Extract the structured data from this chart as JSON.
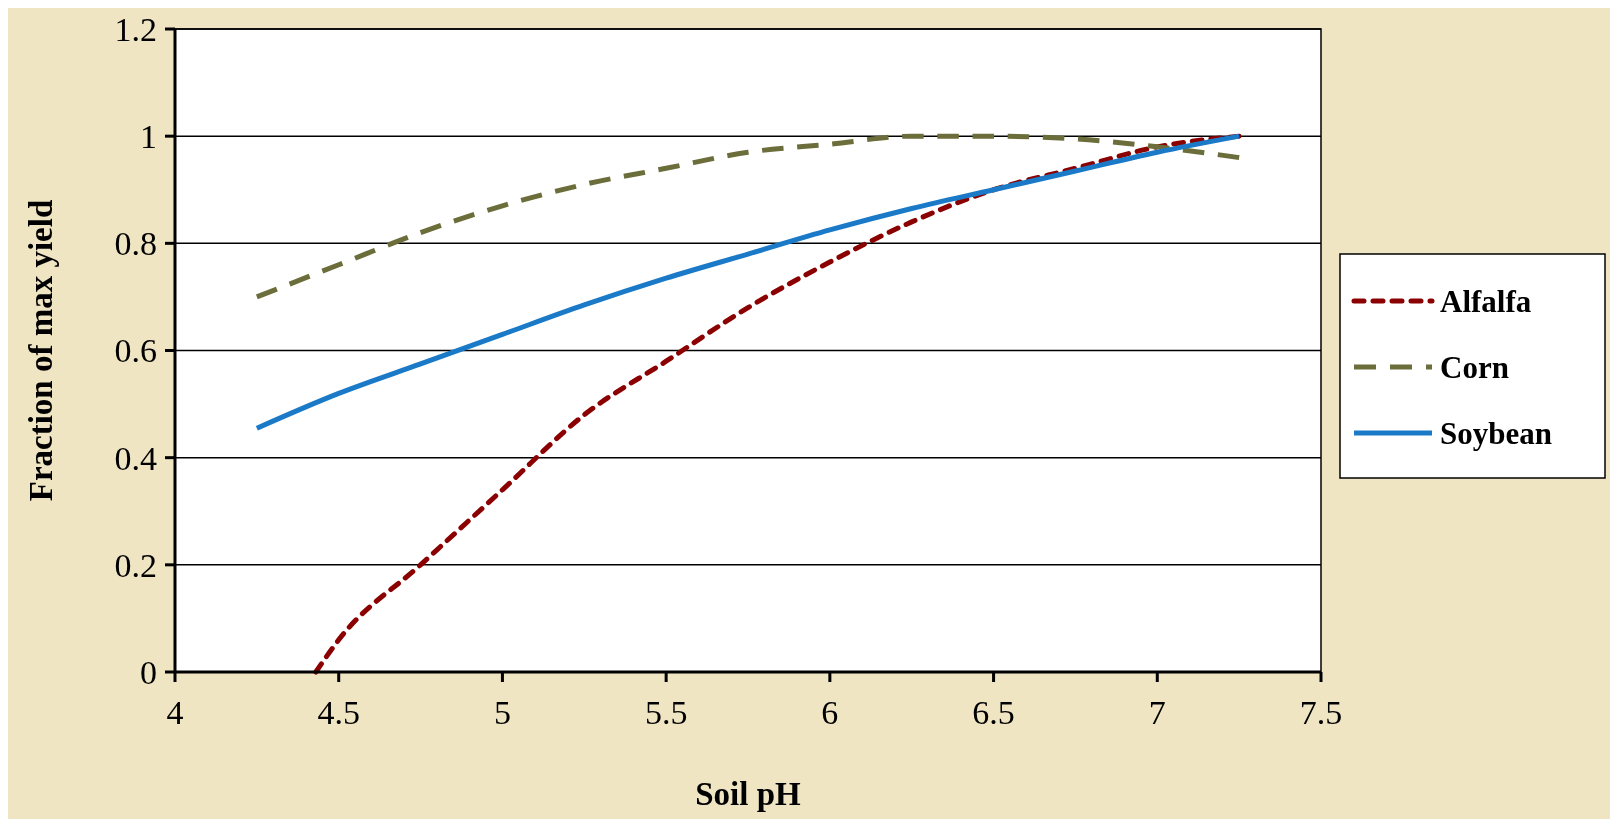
{
  "chart_data": {
    "type": "line",
    "xlabel": "Soil pH",
    "ylabel": "Fraction of max yield",
    "xlim": [
      4,
      7.5
    ],
    "xticks": [
      4,
      4.5,
      5,
      5.5,
      6,
      6.5,
      7,
      7.5
    ],
    "ylim": [
      0,
      1.2
    ],
    "yticks": [
      0,
      0.2,
      0.4,
      0.6,
      0.8,
      1,
      1.2
    ],
    "grid": "y",
    "legend": "right",
    "marker": "none",
    "series": [
      {
        "name": "Alfalfa",
        "color": "#8b0000",
        "line_style": "dotted",
        "x": [
          4.43,
          4.5,
          4.75,
          5,
          5.25,
          5.5,
          5.75,
          6,
          6.25,
          6.5,
          6.75,
          7,
          7.25
        ],
        "values": [
          0,
          0.06,
          0.2,
          0.34,
          0.48,
          0.58,
          0.68,
          0.765,
          0.84,
          0.9,
          0.94,
          0.98,
          1
        ]
      },
      {
        "name": "Corn",
        "color": "#6b6d3a",
        "line_style": "dashed",
        "x": [
          4.25,
          4.5,
          4.75,
          5,
          5.25,
          5.5,
          5.75,
          6,
          6.25,
          6.5,
          6.75,
          7,
          7.25
        ],
        "values": [
          0.7,
          0.76,
          0.82,
          0.87,
          0.91,
          0.94,
          0.97,
          0.985,
          1,
          1,
          0.995,
          0.98,
          0.96
        ]
      },
      {
        "name": "Soybean",
        "color": "#1a7ac8",
        "line_style": "solid",
        "x": [
          4.25,
          4.5,
          4.75,
          5,
          5.25,
          5.5,
          5.75,
          6,
          6.25,
          6.5,
          6.75,
          7,
          7.25
        ],
        "values": [
          0.455,
          0.52,
          0.575,
          0.63,
          0.685,
          0.735,
          0.78,
          0.825,
          0.865,
          0.9,
          0.935,
          0.97,
          1
        ]
      }
    ]
  }
}
